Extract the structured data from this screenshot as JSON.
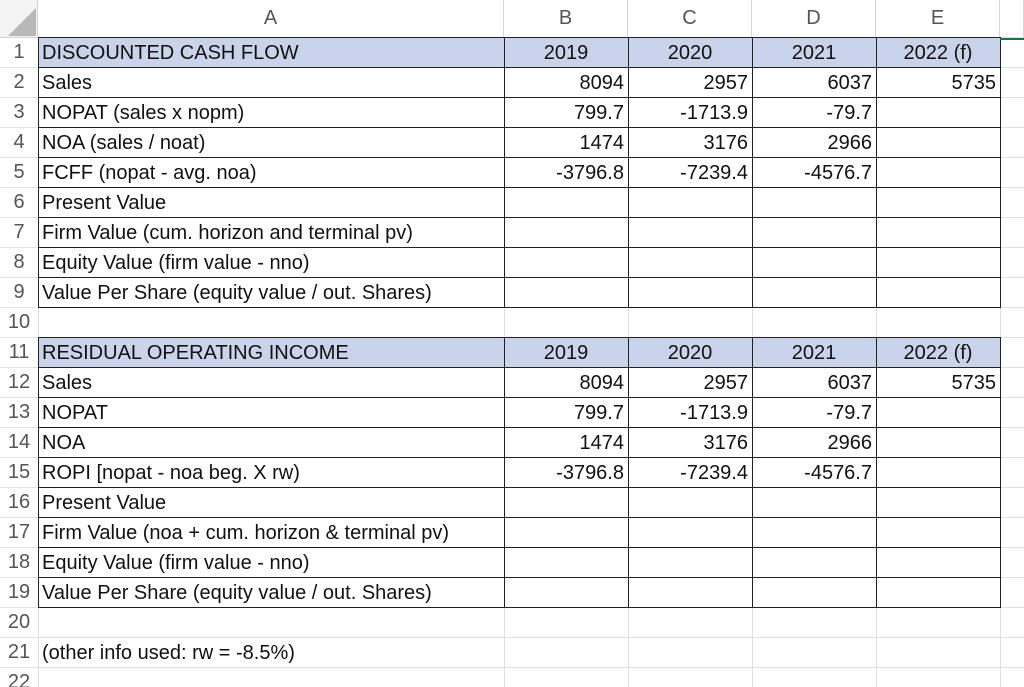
{
  "columns": [
    "A",
    "B",
    "C",
    "D",
    "E"
  ],
  "rows": [
    "1",
    "2",
    "3",
    "4",
    "5",
    "6",
    "7",
    "8",
    "9",
    "10",
    "11",
    "12",
    "13",
    "14",
    "15",
    "16",
    "17",
    "18",
    "19",
    "20",
    "21",
    "22"
  ],
  "dcf": {
    "title": "DISCOUNTED CASH FLOW",
    "years": [
      "2019",
      "2020",
      "2021",
      "2022 (f)"
    ],
    "lines": [
      {
        "label": "Sales",
        "values": [
          "8094",
          "2957",
          "6037",
          "5735"
        ]
      },
      {
        "label": "NOPAT (sales x nopm)",
        "values": [
          "799.7",
          "-1713.9",
          "-79.7",
          ""
        ]
      },
      {
        "label": "NOA (sales / noat)",
        "values": [
          "1474",
          "3176",
          "2966",
          ""
        ]
      },
      {
        "label": "FCFF (nopat - avg. noa)",
        "values": [
          "-3796.8",
          "-7239.4",
          "-4576.7",
          ""
        ]
      },
      {
        "label": "Present Value",
        "values": [
          "",
          "",
          "",
          ""
        ]
      },
      {
        "label": "Firm Value (cum. horizon and terminal pv)",
        "values": [
          "",
          "",
          "",
          ""
        ]
      },
      {
        "label": "Equity Value (firm value - nno)",
        "values": [
          "",
          "",
          "",
          ""
        ]
      },
      {
        "label": "Value Per Share (equity value / out. Shares)",
        "values": [
          "",
          "",
          "",
          ""
        ]
      }
    ]
  },
  "roi": {
    "title": "RESIDUAL OPERATING INCOME",
    "years": [
      "2019",
      "2020",
      "2021",
      "2022 (f)"
    ],
    "lines": [
      {
        "label": "Sales",
        "values": [
          "8094",
          "2957",
          "6037",
          "5735"
        ]
      },
      {
        "label": "NOPAT",
        "values": [
          "799.7",
          "-1713.9",
          "-79.7",
          ""
        ]
      },
      {
        "label": "NOA",
        "values": [
          "1474",
          "3176",
          "2966",
          ""
        ]
      },
      {
        "label": "ROPI [nopat - noa beg. X rw)",
        "values": [
          "-3796.8",
          "-7239.4",
          "-4576.7",
          ""
        ]
      },
      {
        "label": "Present Value",
        "values": [
          "",
          "",
          "",
          ""
        ]
      },
      {
        "label": "Firm Value (noa + cum. horizon & terminal pv)",
        "values": [
          "",
          "",
          "",
          ""
        ]
      },
      {
        "label": "Equity Value (firm value - nno)",
        "values": [
          "",
          "",
          "",
          ""
        ]
      },
      {
        "label": "Value Per Share (equity value / out. Shares)",
        "values": [
          "",
          "",
          "",
          ""
        ]
      }
    ]
  },
  "note": "(other info used: rw = -8.5%)",
  "colors": {
    "header_band": "#c9d3ea",
    "grid": "#e1e1e1",
    "selection": "#1e7145"
  }
}
